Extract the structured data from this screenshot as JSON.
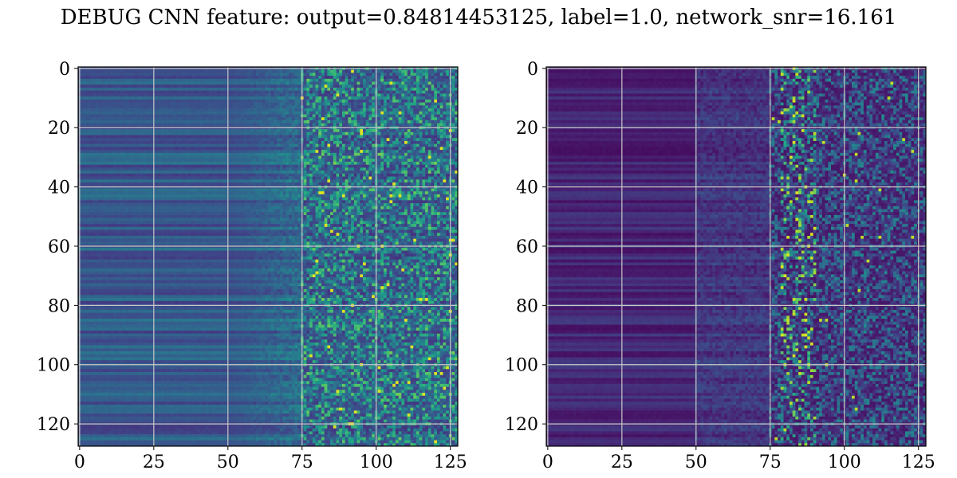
{
  "title": "DEBUG CNN feature: output=0.84814453125, label=1.0, network_snr=16.161",
  "chart_data": [
    {
      "type": "heatmap",
      "colormap": "viridis",
      "grid": true,
      "xlim": [
        0,
        127
      ],
      "ylim": [
        127,
        0
      ],
      "x_ticks": [
        0,
        25,
        50,
        75,
        100,
        125
      ],
      "y_ticks": [
        0,
        20,
        40,
        60,
        80,
        100,
        120
      ],
      "x_tick_labels": [
        "0",
        "25",
        "50",
        "75",
        "100",
        "125"
      ],
      "y_tick_labels": [
        "0",
        "20",
        "40",
        "60",
        "80",
        "100",
        "120"
      ],
      "matrix_shape": [
        128,
        128
      ]
    },
    {
      "type": "heatmap",
      "colormap": "viridis",
      "grid": true,
      "xlim": [
        0,
        127
      ],
      "ylim": [
        127,
        0
      ],
      "x_ticks": [
        0,
        25,
        50,
        75,
        100,
        125
      ],
      "y_ticks": [
        0,
        20,
        40,
        60,
        80,
        100,
        120
      ],
      "x_tick_labels": [
        "0",
        "25",
        "50",
        "75",
        "100",
        "125"
      ],
      "y_tick_labels": [
        "0",
        "20",
        "40",
        "60",
        "80",
        "100",
        "120"
      ],
      "matrix_shape": [
        128,
        128
      ]
    }
  ]
}
